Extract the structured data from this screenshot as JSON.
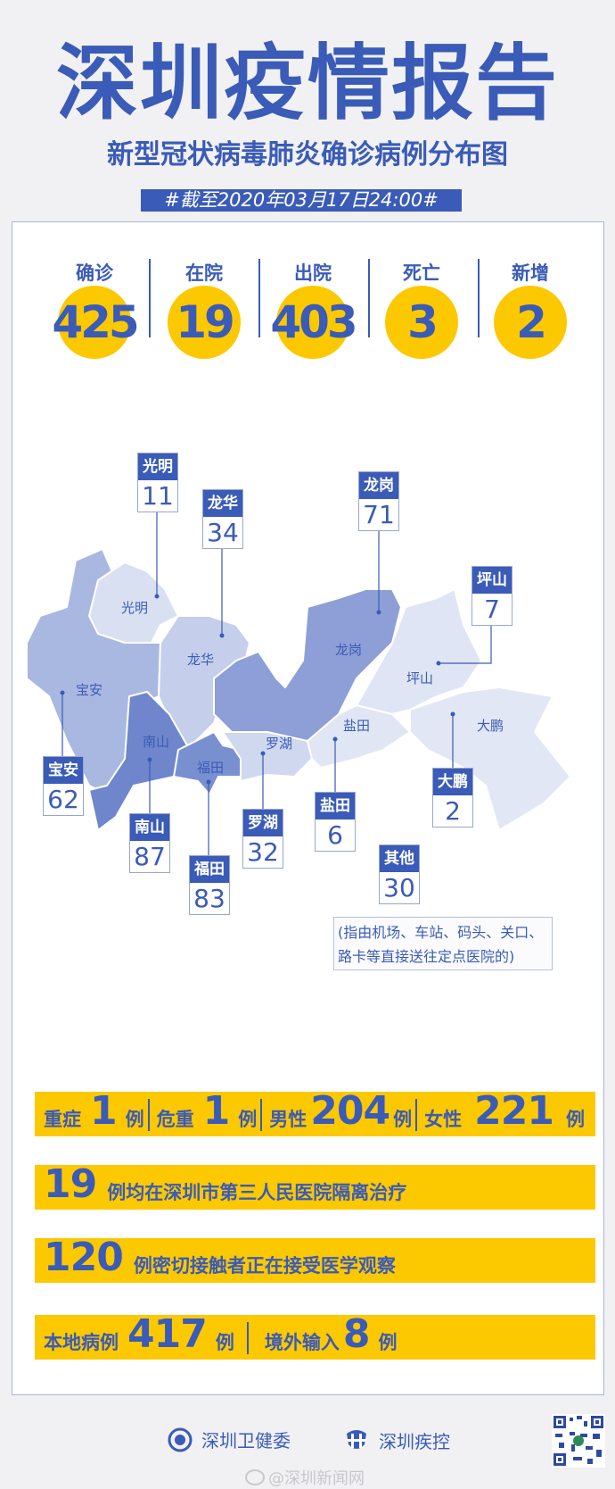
{
  "header": {
    "title": "深圳疫情报告",
    "subtitle": "新型冠状病毒肺炎确诊病例分布图",
    "date": "#截至2020年03月17日24:00#"
  },
  "stats": [
    {
      "label": "确诊",
      "value": "425"
    },
    {
      "label": "在院",
      "value": "19"
    },
    {
      "label": "出院",
      "value": "403"
    },
    {
      "label": "死亡",
      "value": "3"
    },
    {
      "label": "新增",
      "value": "2"
    }
  ],
  "map": {
    "districts": [
      {
        "name": "光明",
        "count": "11"
      },
      {
        "name": "龙华",
        "count": "34"
      },
      {
        "name": "龙岗",
        "count": "71"
      },
      {
        "name": "坪山",
        "count": "7"
      },
      {
        "name": "宝安",
        "count": "62"
      },
      {
        "name": "南山",
        "count": "87"
      },
      {
        "name": "福田",
        "count": "83"
      },
      {
        "name": "罗湖",
        "count": "32"
      },
      {
        "name": "盐田",
        "count": "6"
      },
      {
        "name": "大鹏",
        "count": "2"
      }
    ],
    "other": {
      "name": "其他",
      "count": "30",
      "note_line1": "(指由机场、车站、码头、关口、",
      "note_line2": "路卡等直接送往定点医院的)"
    }
  },
  "bars": {
    "b1": {
      "severe_label": "重症",
      "severe": "1",
      "critical_label": "危重",
      "critical": "1",
      "male_label": "男性",
      "male": "204",
      "female_label": "女性",
      "female": "221",
      "unit": "例"
    },
    "b2": {
      "value": "19",
      "text": "例均在深圳市第三人民医院隔离治疗"
    },
    "b3": {
      "value": "120",
      "text": "例密切接触者正在接受医学观察"
    },
    "b4": {
      "local_label": "本地病例",
      "local": "417",
      "imported_label": "境外输入",
      "imported": "8",
      "unit": "例"
    }
  },
  "footer": {
    "org1": "深圳卫健委",
    "org2": "深圳疾控",
    "watermark": "@深圳新闻网"
  },
  "colors": {
    "blue": "#3a5bb7",
    "yellow": "#fcc800",
    "background": "#f1f1f3"
  }
}
